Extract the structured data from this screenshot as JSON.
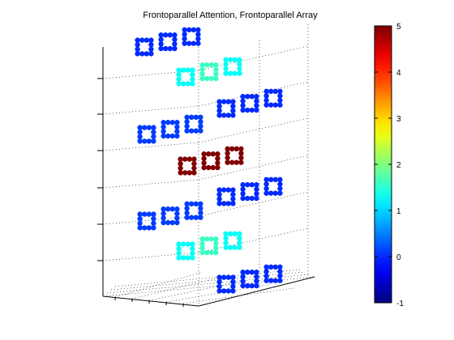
{
  "chart_data": {
    "type": "scatter",
    "projection": "3d",
    "title": "Frontoparallel Attention, Frontoparallel Array",
    "xlabel": "",
    "ylabel": "",
    "zlabel": "",
    "grid": true,
    "colorbar": {
      "colormap": "jet",
      "range": [
        -1,
        5
      ],
      "ticks": [
        -1,
        0,
        1,
        2,
        3,
        4,
        5
      ],
      "tick_labels": [
        "-1",
        "0",
        "1",
        "2",
        "3",
        "4",
        "5"
      ],
      "placement": "right"
    },
    "tiers": [
      {
        "layer": 1,
        "depth_row": "back",
        "values": [
          0.0,
          0.0,
          0.0
        ]
      },
      {
        "layer": 2,
        "depth_row": "front",
        "values": [
          1.3,
          1.6,
          1.3
        ]
      },
      {
        "layer": 3,
        "depth_row": "back",
        "values": [
          0.1,
          0.1,
          0.1
        ]
      },
      {
        "layer": 3,
        "depth_row": "front",
        "values": [
          0.0,
          0.0,
          0.0
        ]
      },
      {
        "layer": 4,
        "depth_row": "front",
        "values": [
          5.0,
          5.0,
          5.0
        ]
      },
      {
        "layer": 5,
        "depth_row": "back",
        "values": [
          0.1,
          0.1,
          0.1
        ]
      },
      {
        "layer": 5,
        "depth_row": "front",
        "values": [
          0.0,
          0.0,
          0.0
        ]
      },
      {
        "layer": 6,
        "depth_row": "front",
        "values": [
          1.3,
          1.6,
          1.3
        ]
      },
      {
        "layer": 7,
        "depth_row": "back",
        "values": [
          0.0,
          0.0,
          0.0
        ]
      }
    ]
  }
}
